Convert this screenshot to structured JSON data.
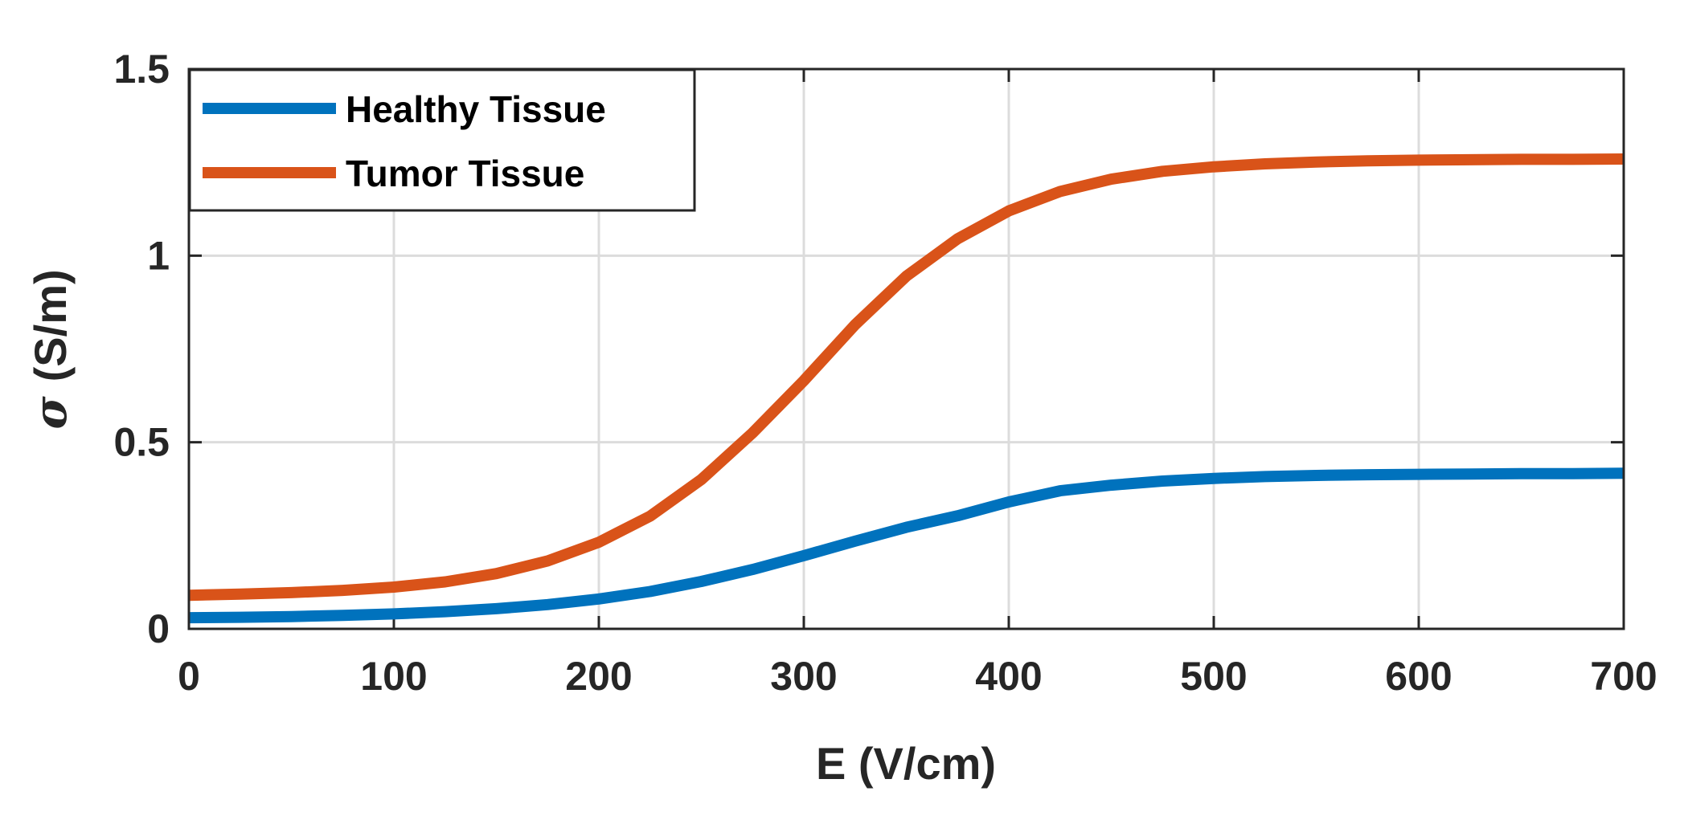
{
  "chart_data": {
    "type": "line",
    "title": "",
    "xlabel": "E (V/cm)",
    "ylabel_symbol": "σ",
    "ylabel_unit": "(S/m)",
    "xlim": [
      0,
      700
    ],
    "ylim": [
      0,
      1.5
    ],
    "xticks": [
      0,
      100,
      200,
      300,
      400,
      500,
      600,
      700
    ],
    "xtick_labels": [
      "0",
      "100",
      "200",
      "300",
      "400",
      "500",
      "600",
      "700"
    ],
    "yticks": [
      0,
      0.5,
      1,
      1.5
    ],
    "ytick_labels": [
      "0",
      "0.5",
      "1",
      "1.5"
    ],
    "grid": true,
    "legend_position": "top-left",
    "x": [
      0,
      25,
      50,
      75,
      100,
      125,
      150,
      175,
      200,
      225,
      250,
      275,
      300,
      325,
      350,
      375,
      400,
      425,
      450,
      475,
      500,
      525,
      550,
      575,
      600,
      625,
      650,
      675,
      700
    ],
    "series": [
      {
        "name": "Healthy Tissue",
        "color": "#0072BD",
        "values": [
          0.03,
          0.031,
          0.033,
          0.036,
          0.04,
          0.046,
          0.054,
          0.065,
          0.08,
          0.1,
          0.127,
          0.159,
          0.196,
          0.235,
          0.272,
          0.303,
          0.34,
          0.37,
          0.385,
          0.396,
          0.403,
          0.408,
          0.411,
          0.413,
          0.414,
          0.415,
          0.416,
          0.416,
          0.417
        ]
      },
      {
        "name": "Tumor Tissue",
        "color": "#D95319",
        "values": [
          0.09,
          0.093,
          0.097,
          0.103,
          0.112,
          0.126,
          0.148,
          0.182,
          0.232,
          0.302,
          0.4,
          0.525,
          0.665,
          0.815,
          0.945,
          1.045,
          1.12,
          1.172,
          1.205,
          1.226,
          1.238,
          1.246,
          1.251,
          1.254,
          1.256,
          1.257,
          1.258,
          1.258,
          1.259
        ]
      }
    ]
  }
}
